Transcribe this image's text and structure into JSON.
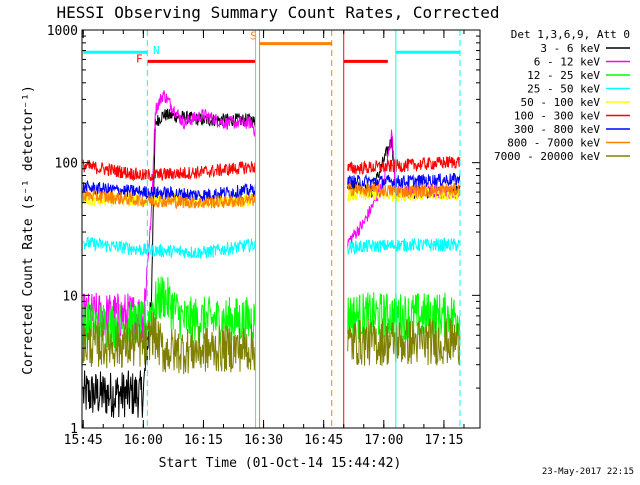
{
  "chart_data": {
    "type": "line",
    "title": "HESSI Observing Summary Count Rates, Corrected",
    "xlabel": "Start Time (01-Oct-14 15:44:42)",
    "ylabel": "Corrected Count Rate (s⁻¹ detector⁻¹)",
    "y_scale": "log",
    "ylim": [
      1,
      1000
    ],
    "xlim": [
      "15:44:42",
      "17:24:00"
    ],
    "x_ticks": [
      "15:45",
      "16:00",
      "16:15",
      "16:30",
      "16:45",
      "17:00",
      "17:15"
    ],
    "y_ticks": [
      "1",
      "10",
      "100",
      "1000"
    ],
    "legend": {
      "placement": "right",
      "header": "Det 1,3,6,9, Att 0",
      "entries": [
        "3 - 6 keV",
        "6 - 12 keV",
        "12 - 25 keV",
        "25 - 50 keV",
        "50 - 100 keV",
        "100 - 300 keV",
        "300 - 800 keV",
        "800 - 7000 keV",
        "7000 - 20000 keV"
      ]
    },
    "series": [
      {
        "name": "3 - 6 keV",
        "color": "#000000",
        "x": [
          "15:45",
          "16:00",
          "16:02",
          "16:03",
          "16:05",
          "16:15",
          "16:27",
          "16:28",
          "16:51",
          "16:57",
          "17:02",
          "17:03",
          "17:19"
        ],
        "y": [
          1.8,
          1.8,
          10,
          200,
          230,
          210,
          210,
          200,
          70,
          60,
          150,
          60,
          60
        ]
      },
      {
        "name": "6 - 12 keV",
        "color": "#ff00ff",
        "x": [
          "15:45",
          "16:00",
          "16:02",
          "16:03",
          "16:05",
          "16:10",
          "16:15",
          "16:20",
          "16:27",
          "16:28",
          "16:51",
          "16:55",
          "17:00",
          "17:02",
          "17:03",
          "17:19"
        ],
        "y": [
          7,
          7,
          40,
          250,
          330,
          200,
          230,
          200,
          200,
          170,
          25,
          35,
          70,
          170,
          60,
          60
        ]
      },
      {
        "name": "12 - 25 keV",
        "color": "#00ff00",
        "x": [
          "15:45",
          "16:01",
          "16:02",
          "16:05",
          "16:10",
          "16:27",
          "16:51",
          "17:19"
        ],
        "y": [
          6,
          6,
          8,
          10,
          6.5,
          6.5,
          7,
          7
        ]
      },
      {
        "name": "25 - 50 keV",
        "color": "#00ffff",
        "x": [
          "15:45",
          "16:00",
          "16:15",
          "16:27",
          "16:51",
          "17:05",
          "17:19"
        ],
        "y": [
          25,
          22,
          21,
          24,
          23,
          24,
          24
        ]
      },
      {
        "name": "50 - 100 keV",
        "color": "#ffff00",
        "x": [
          "15:45",
          "16:27",
          "16:51",
          "17:19"
        ],
        "y": [
          52,
          52,
          57,
          58
        ]
      },
      {
        "name": "100 - 300 keV",
        "color": "#ff0000",
        "x": [
          "15:45",
          "15:52",
          "16:00",
          "16:15",
          "16:27",
          "16:51",
          "17:05",
          "17:19"
        ],
        "y": [
          95,
          88,
          80,
          85,
          93,
          90,
          95,
          102
        ]
      },
      {
        "name": "300 - 800 keV",
        "color": "#0000ff",
        "x": [
          "15:45",
          "16:00",
          "16:15",
          "16:27",
          "16:51",
          "17:05",
          "17:19"
        ],
        "y": [
          65,
          60,
          57,
          62,
          72,
          72,
          75
        ]
      },
      {
        "name": "800 - 7000 keV",
        "color": "#ff8000",
        "x": [
          "15:45",
          "16:00",
          "16:15",
          "16:27",
          "16:51",
          "17:05",
          "17:19"
        ],
        "y": [
          57,
          52,
          50,
          52,
          63,
          61,
          63
        ]
      },
      {
        "name": "7000 - 20000 keV",
        "color": "#808000",
        "x": [
          "15:45",
          "16:01",
          "16:02",
          "16:05",
          "16:27",
          "16:51",
          "17:19"
        ],
        "y": [
          4.3,
          4.2,
          5.5,
          3.8,
          4.0,
          4.4,
          4.5
        ]
      }
    ],
    "state_bars": [
      {
        "label": "N",
        "color": "#00ffff",
        "start": "15:45",
        "end": "16:01",
        "level": 680
      },
      {
        "label": "F",
        "color": "#ff0000",
        "start": "16:01",
        "end": "16:28",
        "level": 580
      },
      {
        "label": "S",
        "color": "#ff8000",
        "start": "16:29",
        "end": "16:47",
        "level": 790
      },
      {
        "label": "",
        "color": "#ff0000",
        "start": "16:50",
        "end": "17:01",
        "level": 580
      },
      {
        "label": "",
        "color": "#00ffff",
        "start": "17:03",
        "end": "17:19",
        "level": 680
      }
    ],
    "vlines": [
      {
        "time": "16:01",
        "color": "#00ffff",
        "style": "dashed"
      },
      {
        "time": "16:28",
        "color": "#00ffff",
        "style": "solid"
      },
      {
        "time": "16:29",
        "color": "#ff8000",
        "style": "solid"
      },
      {
        "time": "16:47",
        "color": "#ff8000",
        "style": "dashed"
      },
      {
        "time": "16:50",
        "color": "#ff0000",
        "style": "solid"
      },
      {
        "time": "17:03",
        "color": "#00ffff",
        "style": "solid"
      },
      {
        "time": "17:19",
        "color": "#00ffff",
        "style": "dashed"
      }
    ],
    "footer": "23-May-2017 22:15"
  }
}
